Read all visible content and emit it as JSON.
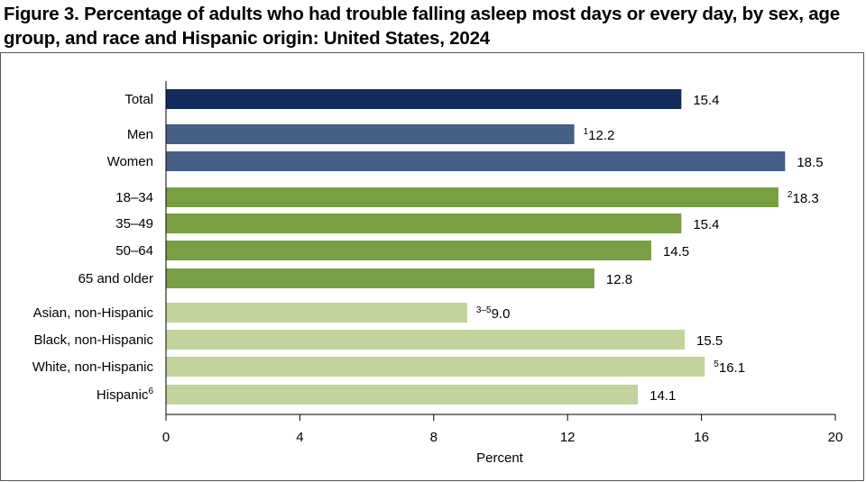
{
  "title": "Figure 3. Percentage of adults who had trouble falling asleep most days or every day, by sex, age group, and race and Hispanic origin: United States, 2024",
  "chart_data": {
    "type": "bar",
    "orientation": "horizontal",
    "xlabel": "Percent",
    "xlim": [
      0,
      20
    ],
    "xticks": [
      0,
      4,
      8,
      12,
      16,
      20
    ],
    "grid": false,
    "bars": [
      {
        "label": "Total",
        "label_sup": "",
        "value": 15.4,
        "value_text": "15.4",
        "value_sup": "",
        "group": "total",
        "color": "#132a5c"
      },
      {
        "label": "Men",
        "label_sup": "",
        "value": 12.2,
        "value_text": "12.2",
        "value_sup": "1",
        "group": "sex",
        "color": "#465f86"
      },
      {
        "label": "Women",
        "label_sup": "",
        "value": 18.5,
        "value_text": "18.5",
        "value_sup": "",
        "group": "sex",
        "color": "#465f86"
      },
      {
        "label": "18–34",
        "label_sup": "",
        "value": 18.3,
        "value_text": "18.3",
        "value_sup": "2",
        "group": "age",
        "color": "#789f43"
      },
      {
        "label": "35–49",
        "label_sup": "",
        "value": 15.4,
        "value_text": "15.4",
        "value_sup": "",
        "group": "age",
        "color": "#789f43"
      },
      {
        "label": "50–64",
        "label_sup": "",
        "value": 14.5,
        "value_text": "14.5",
        "value_sup": "",
        "group": "age",
        "color": "#789f43"
      },
      {
        "label": "65 and older",
        "label_sup": "",
        "value": 12.8,
        "value_text": "12.8",
        "value_sup": "",
        "group": "age",
        "color": "#789f43"
      },
      {
        "label": "Asian, non-Hispanic",
        "label_sup": "",
        "value": 9.0,
        "value_text": "9.0",
        "value_sup": "3–5",
        "group": "race",
        "color": "#c2d39c"
      },
      {
        "label": "Black, non-Hispanic",
        "label_sup": "",
        "value": 15.5,
        "value_text": "15.5",
        "value_sup": "",
        "group": "race",
        "color": "#c2d39c"
      },
      {
        "label": "White, non-Hispanic",
        "label_sup": "",
        "value": 16.1,
        "value_text": "16.1",
        "value_sup": "5",
        "group": "race",
        "color": "#c2d39c"
      },
      {
        "label": "Hispanic",
        "label_sup": "6",
        "value": 14.1,
        "value_text": "14.1",
        "value_sup": "",
        "group": "race",
        "color": "#c2d39c"
      }
    ]
  }
}
